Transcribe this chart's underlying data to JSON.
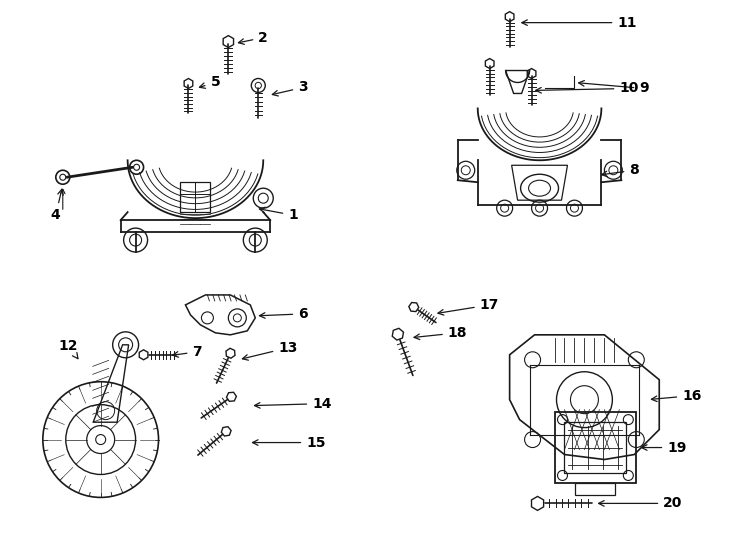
{
  "background_color": "#ffffff",
  "line_color": "#1a1a1a",
  "figure_width": 7.34,
  "figure_height": 5.4,
  "dpi": 100
}
